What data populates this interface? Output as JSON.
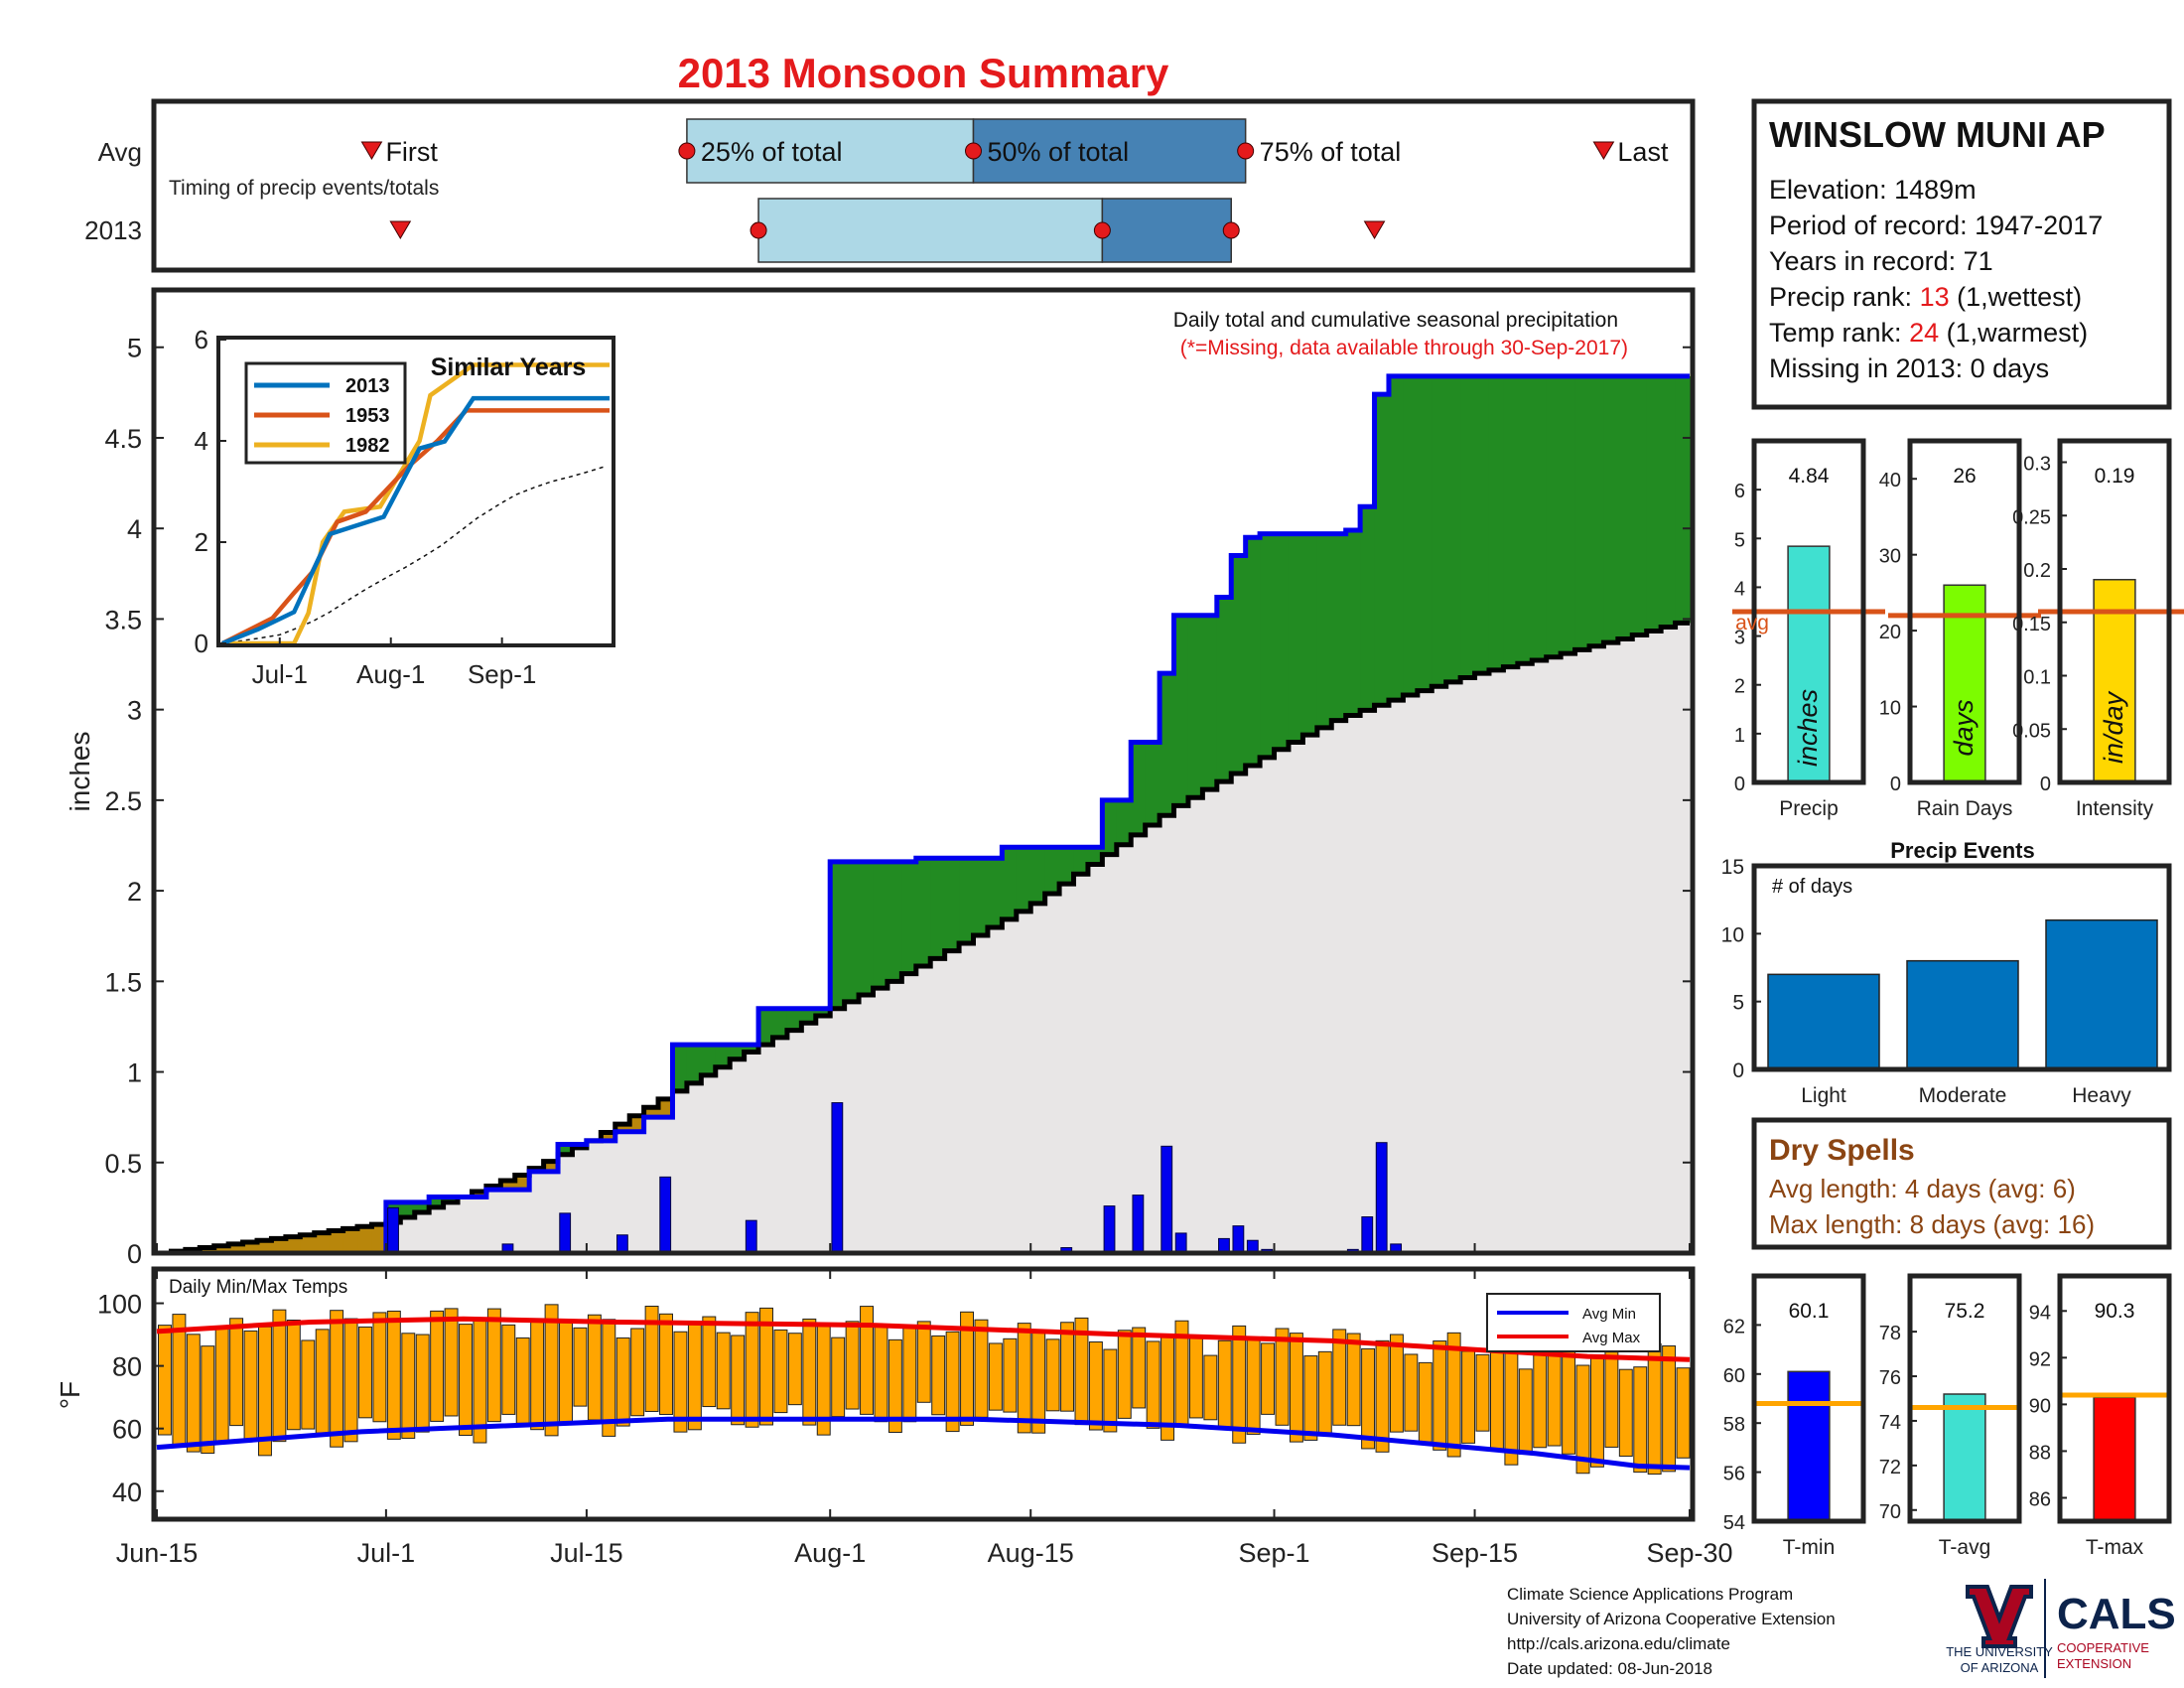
{
  "title": "2013 Monsoon Summary",
  "timing": {
    "label": "Timing of precip events/totals",
    "rows": [
      "Avg",
      "2013"
    ],
    "marker_labels": [
      "First",
      "25% of total",
      "50% of total",
      "75% of total",
      "Last"
    ],
    "avg": {
      "first": "Jun-30",
      "p25": "Jul-22",
      "p50": "Aug-11",
      "p75": "Aug-30",
      "last": "Sep-24"
    },
    "y2013": {
      "first": "Jul-2",
      "p25": "Jul-27",
      "p50": "Aug-20",
      "p75": "Aug-29",
      "last": "Sep-8"
    }
  },
  "station": {
    "name": "WINSLOW MUNI AP",
    "elevation_label": "Elevation: 1489m",
    "period_label": "Period of record: 1947-2017",
    "years_label": "Years in record: 71",
    "precip_rank_prefix": "Precip rank: ",
    "precip_rank": "13",
    "precip_rank_suffix": " (1,wettest)",
    "temp_rank_prefix": "Temp rank: ",
    "temp_rank": "24",
    "temp_rank_suffix": " (1,warmest)",
    "missing_label": "Missing in 2013: 0 days"
  },
  "main_chart": {
    "annotation": "Daily total and cumulative seasonal precipitation",
    "missing_note": "(*=Missing, data available through 30-Sep-2017)",
    "ylabel": "inches",
    "x_ticks": [
      "Jun-15",
      "Jul-1",
      "Jul-15",
      "Aug-1",
      "Aug-15",
      "Sep-1",
      "Sep-15",
      "Sep-30"
    ],
    "y_ticks": [
      "0",
      "0.5",
      "1",
      "1.5",
      "2",
      "2.5",
      "3",
      "3.5",
      "4",
      "4.5",
      "5"
    ]
  },
  "inset": {
    "title": "Similar Years",
    "x_ticks": [
      "Jul-1",
      "Aug-1",
      "Sep-1"
    ],
    "y_ticks": [
      "0",
      "2",
      "4",
      "6"
    ],
    "legend": [
      "2013",
      "1953",
      "1982"
    ]
  },
  "temps": {
    "label": "Daily Min/Max Temps",
    "ylabel": "°F",
    "y_ticks": [
      "40",
      "60",
      "80",
      "100"
    ],
    "legend": [
      "Avg Min",
      "Avg Max"
    ]
  },
  "summary_bars": [
    {
      "label": "Precip",
      "value": "4.84",
      "unit": "inches",
      "avg": 3.5,
      "ymax": 7,
      "ticks": [
        "0",
        "1",
        "2",
        "3",
        "4",
        "5",
        "6"
      ],
      "color": "#40E0D0",
      "avg_label": "avg"
    },
    {
      "label": "Rain Days",
      "value": "26",
      "unit": "days",
      "avg": 22,
      "ymax": 45,
      "ticks": [
        "0",
        "10",
        "20",
        "30",
        "40"
      ],
      "color": "#7CFC00"
    },
    {
      "label": "Intensity",
      "value": "0.19",
      "unit": "in/day",
      "avg": 0.16,
      "ymax": 0.32,
      "ticks": [
        "0",
        "0.05",
        "0.1",
        "0.15",
        "0.2",
        "0.25",
        "0.3"
      ],
      "color": "#FFD700"
    }
  ],
  "precip_events": {
    "title": "Precip Events",
    "ylabel": "# of days",
    "categories": [
      "Light",
      "Moderate",
      "Heavy"
    ],
    "values": [
      7,
      8,
      11
    ],
    "y_ticks": [
      "0",
      "5",
      "10",
      "15"
    ]
  },
  "dry_spells": {
    "title": "Dry Spells",
    "avg_length": "Avg length: 4 days (avg: 6)",
    "max_length": "Max length: 8 days (avg: 16)"
  },
  "temp_bars": [
    {
      "label": "T-min",
      "value": "60.1",
      "avg": 58.8,
      "ymin": 54,
      "ymax": 64,
      "ticks": [
        "54",
        "56",
        "58",
        "60",
        "62"
      ],
      "color": "#0000FF"
    },
    {
      "label": "T-avg",
      "value": "75.2",
      "avg": 74.6,
      "ymin": 69.5,
      "ymax": 80.5,
      "ticks": [
        "70",
        "72",
        "74",
        "76",
        "78"
      ],
      "color": "#40E0D0"
    },
    {
      "label": "T-max",
      "value": "90.3",
      "avg": 90.4,
      "ymin": 85,
      "ymax": 95.5,
      "ticks": [
        "86",
        "88",
        "90",
        "92",
        "94"
      ],
      "color": "#FF0000"
    }
  ],
  "footer": {
    "line1": "Climate Science Applications Program",
    "line2": "University of Arizona Cooperative Extension",
    "line3": "http://cals.arizona.edu/climate",
    "line4": " Date updated: 08-Jun-2018",
    "logo_ua_1": "THE UNIVERSITY",
    "logo_ua_2": "OF ARIZONA",
    "logo_cals": "CALS",
    "logo_coop_1": "COOPERATIVE",
    "logo_coop_2": "EXTENSION"
  },
  "chart_data": {
    "type": "area",
    "title": "2013 Monsoon Summary",
    "ylabel": "inches",
    "ylim": [
      0,
      5.3
    ],
    "cumulative_2013": [
      [
        "Jun-15",
        0
      ],
      [
        "Jul-1",
        0.28
      ],
      [
        "Jul-4",
        0.31
      ],
      [
        "Jul-8",
        0.35
      ],
      [
        "Jul-11",
        0.45
      ],
      [
        "Jul-13",
        0.6
      ],
      [
        "Jul-15",
        0.62
      ],
      [
        "Jul-17",
        0.67
      ],
      [
        "Jul-19",
        0.75
      ],
      [
        "Jul-21",
        1.15
      ],
      [
        "Jul-27",
        1.35
      ],
      [
        "Aug-1",
        2.16
      ],
      [
        "Aug-7",
        2.18
      ],
      [
        "Aug-13",
        2.24
      ],
      [
        "Aug-20",
        2.5
      ],
      [
        "Aug-22",
        2.82
      ],
      [
        "Aug-24",
        3.2
      ],
      [
        "Aug-25",
        3.52
      ],
      [
        "Aug-28",
        3.62
      ],
      [
        "Aug-29",
        3.85
      ],
      [
        "Aug-30",
        3.95
      ],
      [
        "Aug-31",
        3.97
      ],
      [
        "Sep-6",
        3.99
      ],
      [
        "Sep-7",
        4.12
      ],
      [
        "Sep-8",
        4.74
      ],
      [
        "Sep-9",
        4.84
      ],
      [
        "Sep-30",
        4.84
      ]
    ],
    "cumulative_avg": [
      [
        "Jun-15",
        0
      ],
      [
        "Jun-20",
        0.05
      ],
      [
        "Jun-25",
        0.1
      ],
      [
        "Jul-1",
        0.17
      ],
      [
        "Jul-5",
        0.28
      ],
      [
        "Jul-10",
        0.43
      ],
      [
        "Jul-15",
        0.62
      ],
      [
        "Jul-20",
        0.85
      ],
      [
        "Jul-25",
        1.07
      ],
      [
        "Aug-1",
        1.35
      ],
      [
        "Aug-5",
        1.5
      ],
      [
        "Aug-10",
        1.71
      ],
      [
        "Aug-15",
        1.93
      ],
      [
        "Aug-20",
        2.2
      ],
      [
        "Aug-25",
        2.47
      ],
      [
        "Sep-1",
        2.78
      ],
      [
        "Sep-5",
        2.94
      ],
      [
        "Sep-10",
        3.08
      ],
      [
        "Sep-15",
        3.2
      ],
      [
        "Sep-20",
        3.29
      ],
      [
        "Sep-25",
        3.39
      ],
      [
        "Sep-30",
        3.5
      ]
    ],
    "daily_2013": [
      [
        "Jul-1",
        0.25
      ],
      [
        "Jul-5",
        0.01
      ],
      [
        "Jul-9",
        0.05
      ],
      [
        "Jul-12",
        0.01
      ],
      [
        "Jul-13",
        0.22
      ],
      [
        "Jul-17",
        0.1
      ],
      [
        "Jul-20",
        0.42
      ],
      [
        "Jul-26",
        0.18
      ],
      [
        "Aug-1",
        0.83
      ],
      [
        "Aug-17",
        0.03
      ],
      [
        "Aug-20",
        0.26
      ],
      [
        "Aug-22",
        0.32
      ],
      [
        "Aug-24",
        0.59
      ],
      [
        "Aug-25",
        0.11
      ],
      [
        "Aug-28",
        0.08
      ],
      [
        "Aug-29",
        0.15
      ],
      [
        "Aug-30",
        0.07
      ],
      [
        "Aug-31",
        0.02
      ],
      [
        "Sep-6",
        0.02
      ],
      [
        "Sep-7",
        0.2
      ],
      [
        "Sep-8",
        0.61
      ],
      [
        "Sep-9",
        0.05
      ]
    ],
    "similar_years": [
      {
        "name": "2013",
        "values": [
          [
            0,
            0
          ],
          [
            10,
            0.28
          ],
          [
            20,
            0.62
          ],
          [
            30,
            2.16
          ],
          [
            45,
            2.5
          ],
          [
            55,
            3.85
          ],
          [
            62,
            3.99
          ],
          [
            70,
            4.84
          ],
          [
            108,
            4.84
          ]
        ]
      },
      {
        "name": "1953",
        "values": [
          [
            0,
            0
          ],
          [
            14,
            0.5
          ],
          [
            20,
            1.0
          ],
          [
            25,
            1.4
          ],
          [
            32,
            2.4
          ],
          [
            40,
            2.6
          ],
          [
            52,
            3.5
          ],
          [
            60,
            4.0
          ],
          [
            68,
            4.6
          ],
          [
            108,
            4.6
          ]
        ]
      },
      {
        "name": "1982",
        "values": [
          [
            0,
            0
          ],
          [
            20,
            0
          ],
          [
            24,
            0.6
          ],
          [
            28,
            2.0
          ],
          [
            34,
            2.6
          ],
          [
            44,
            2.7
          ],
          [
            55,
            4.0
          ],
          [
            58,
            4.9
          ],
          [
            70,
            5.5
          ],
          [
            108,
            5.5
          ]
        ]
      }
    ],
    "temps": {
      "avg_min": [
        [
          0,
          54
        ],
        [
          20,
          59
        ],
        [
          50,
          63
        ],
        [
          80,
          63
        ],
        [
          100,
          61
        ],
        [
          115,
          58
        ],
        [
          125,
          55
        ],
        [
          135,
          52
        ],
        [
          145,
          48
        ],
        [
          150,
          47.5
        ]
      ],
      "avg_max": [
        [
          0,
          91
        ],
        [
          15,
          94
        ],
        [
          30,
          95
        ],
        [
          45,
          94
        ],
        [
          70,
          93
        ],
        [
          95,
          90
        ],
        [
          115,
          88
        ],
        [
          130,
          85
        ],
        [
          140,
          83
        ],
        [
          150,
          82
        ]
      ]
    }
  }
}
